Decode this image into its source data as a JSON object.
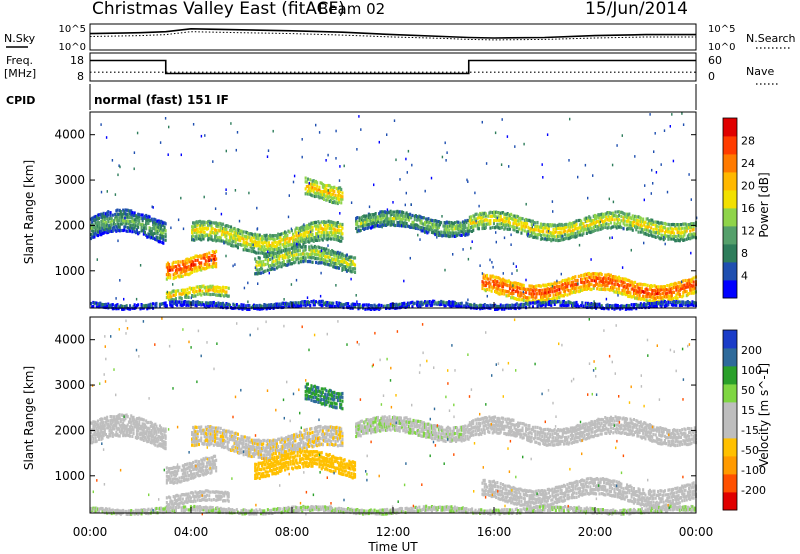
{
  "header": {
    "station": "Christmas Valley East (fitACF)",
    "beam": "Beam 02",
    "date": "15/Jun/2014"
  },
  "panels": {
    "nsky": {
      "label": "N.Sky",
      "ticks_left": [
        "10^5",
        "10^0"
      ],
      "ticks_right": [
        "10^5",
        "10^0"
      ],
      "right_label": "N.Search"
    },
    "freq": {
      "label_line1": "Freq.",
      "label_line2": "[MHz]",
      "ticks_left": [
        "18",
        "8"
      ],
      "ticks_right": [
        "60",
        "0"
      ],
      "right_label": "Nave"
    },
    "cpid": {
      "label": "CPID",
      "value": "normal (fast) 151 IF"
    }
  },
  "chart_data": [
    {
      "type": "line",
      "name": "nsky_nsearch",
      "x": [
        "00:00",
        "02:00",
        "03:00",
        "04:00",
        "06:00",
        "08:00",
        "10:00",
        "12:00",
        "14:00",
        "15:00",
        "16:00",
        "18:00",
        "20:00",
        "22:00",
        "24:00"
      ],
      "series": [
        {
          "name": "N.Sky",
          "values": [
            3.2,
            3.4,
            3.6,
            4.2,
            4.0,
            3.8,
            3.5,
            3.0,
            2.6,
            2.4,
            2.3,
            2.4,
            2.8,
            3.0,
            3.0
          ]
        },
        {
          "name": "N.Search",
          "values": [
            2.6,
            2.8,
            3.0,
            3.6,
            3.4,
            3.2,
            2.9,
            2.5,
            2.2,
            2.0,
            1.9,
            2.0,
            2.3,
            2.5,
            2.5
          ]
        }
      ],
      "ylim": [
        0,
        5
      ]
    },
    {
      "type": "line",
      "name": "freq_nave",
      "x": [
        "00:00",
        "03:00",
        "03:00",
        "15:00",
        "15:00",
        "24:00"
      ],
      "series": [
        {
          "name": "Freq.",
          "values": [
            15.5,
            15.5,
            10.5,
            10.5,
            15.5,
            15.5
          ]
        },
        {
          "name": "Nave",
          "values": [
            18,
            18,
            18,
            18,
            18,
            18
          ]
        }
      ],
      "ylim_freq": [
        8,
        18
      ],
      "ylim_nave": [
        0,
        60
      ]
    },
    {
      "type": "heatmap",
      "name": "power",
      "xlabel": "",
      "ylabel": "Slant Range [km]",
      "yticks": [
        "1000",
        "2000",
        "3000",
        "4000"
      ],
      "ylim": [
        180,
        4500
      ],
      "colorbar": {
        "label": "Power [dB]",
        "ticks": [
          "28",
          "24",
          "20",
          "16",
          "12",
          "8",
          "4"
        ],
        "range": [
          0,
          30
        ],
        "colors": [
          "#0000ff",
          "#1f4fb0",
          "#2e7d5b",
          "#55a06b",
          "#8fd44a",
          "#f2e000",
          "#ffb800",
          "#ff7a00",
          "#ff3c00",
          "#e00000"
        ]
      },
      "features": [
        {
          "t_start": 0.0,
          "t_end": 3.0,
          "r_center": 1950,
          "r_width": 500,
          "db": 12
        },
        {
          "t_start": 3.0,
          "t_end": 5.0,
          "r_center": 1150,
          "r_width": 400,
          "db": 26
        },
        {
          "t_start": 4.0,
          "t_end": 10.0,
          "r_center": 1750,
          "r_width": 450,
          "db": 18
        },
        {
          "t_start": 6.5,
          "t_end": 10.5,
          "r_center": 1250,
          "r_width": 400,
          "db": 16
        },
        {
          "t_start": 8.5,
          "t_end": 10.0,
          "r_center": 2800,
          "r_width": 400,
          "db": 20
        },
        {
          "t_start": 10.5,
          "t_end": 15.0,
          "r_center": 2050,
          "r_width": 350,
          "db": 14
        },
        {
          "t_start": 15.0,
          "t_end": 24.0,
          "r_center": 2000,
          "r_width": 400,
          "db": 18
        },
        {
          "t_start": 15.5,
          "t_end": 24.0,
          "r_center": 650,
          "r_width": 400,
          "db": 26
        },
        {
          "t_start": 3.0,
          "t_end": 5.5,
          "r_center": 500,
          "r_width": 250,
          "db": 20
        },
        {
          "t_start": 0.0,
          "t_end": 24.0,
          "r_center": 250,
          "r_width": 120,
          "db": 8
        }
      ]
    },
    {
      "type": "heatmap",
      "name": "velocity",
      "xlabel": "Time UT",
      "ylabel": "Slant Range [km]",
      "xticks": [
        "00:00",
        "04:00",
        "08:00",
        "12:00",
        "16:00",
        "20:00",
        "00:00"
      ],
      "yticks": [
        "1000",
        "2000",
        "3000",
        "4000"
      ],
      "ylim": [
        180,
        4500
      ],
      "colorbar": {
        "label": "Velocity [m s^-1]",
        "ticks": [
          "200",
          "100",
          "50",
          "15",
          "-15",
          "-50",
          "-100",
          "-200"
        ],
        "range": [
          -250,
          250
        ],
        "colors": [
          "#e00000",
          "#ff5000",
          "#ff9a00",
          "#ffc000",
          "#bebebe",
          "#bebebe",
          "#7fd642",
          "#2aa02a",
          "#2e6a9a",
          "#1a3cc8"
        ]
      },
      "features": [
        {
          "t_start": 0.0,
          "t_end": 3.0,
          "r_center": 1950,
          "r_width": 500,
          "v": 0
        },
        {
          "t_start": 3.0,
          "t_end": 5.0,
          "r_center": 1150,
          "r_width": 400,
          "v": 0
        },
        {
          "t_start": 4.0,
          "t_end": 10.0,
          "r_center": 1750,
          "r_width": 450,
          "v": -40
        },
        {
          "t_start": 6.5,
          "t_end": 10.5,
          "r_center": 1250,
          "r_width": 400,
          "v": -70
        },
        {
          "t_start": 8.5,
          "t_end": 10.0,
          "r_center": 2800,
          "r_width": 400,
          "v": 150
        },
        {
          "t_start": 10.5,
          "t_end": 15.0,
          "r_center": 2050,
          "r_width": 350,
          "v": 40
        },
        {
          "t_start": 15.0,
          "t_end": 24.0,
          "r_center": 2000,
          "r_width": 400,
          "v": 0
        },
        {
          "t_start": 15.5,
          "t_end": 24.0,
          "r_center": 650,
          "r_width": 400,
          "v": 0
        },
        {
          "t_start": 3.0,
          "t_end": 5.5,
          "r_center": 500,
          "r_width": 250,
          "v": 0
        },
        {
          "t_start": 0.0,
          "t_end": 24.0,
          "r_center": 250,
          "r_width": 120,
          "v": 40
        }
      ]
    }
  ]
}
